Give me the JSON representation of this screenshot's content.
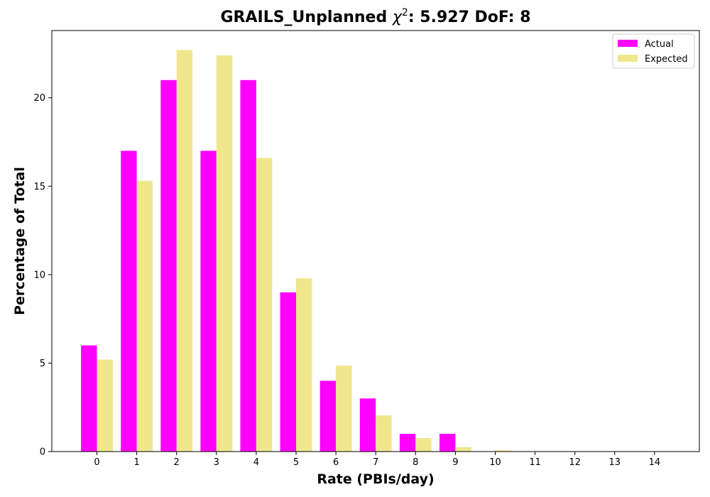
{
  "chart_data": {
    "type": "bar",
    "title": "GRAILS_Unplanned χ²: 5.927 DoF: 8",
    "title_parts": {
      "prefix": "GRAILS_Unplanned ",
      "chi_symbol": "χ",
      "chi_exponent": "2",
      "suffix": ": 5.927 DoF: 8"
    },
    "xlabel": "Rate (PBIs/day)",
    "ylabel": "Percentage of Total",
    "categories": [
      "0",
      "1",
      "2",
      "3",
      "4",
      "5",
      "6",
      "7",
      "8",
      "9",
      "10",
      "11",
      "12",
      "13",
      "14"
    ],
    "yticks": [
      0,
      5,
      10,
      15,
      20
    ],
    "ylim": [
      0,
      23.8
    ],
    "grid": false,
    "legend_position": "top-right",
    "series": [
      {
        "name": "Actual",
        "color": "#ff00ff",
        "values": [
          6,
          17,
          21,
          17,
          21,
          9,
          4,
          3,
          1,
          1,
          0,
          0,
          0,
          0,
          0
        ]
      },
      {
        "name": "Expected",
        "color": "#f0e68c",
        "values": [
          5.2,
          15.3,
          22.7,
          22.4,
          16.6,
          9.8,
          4.85,
          2.05,
          0.76,
          0.25,
          0.07,
          0.02,
          0.005,
          0.001,
          0.0003
        ]
      }
    ]
  }
}
